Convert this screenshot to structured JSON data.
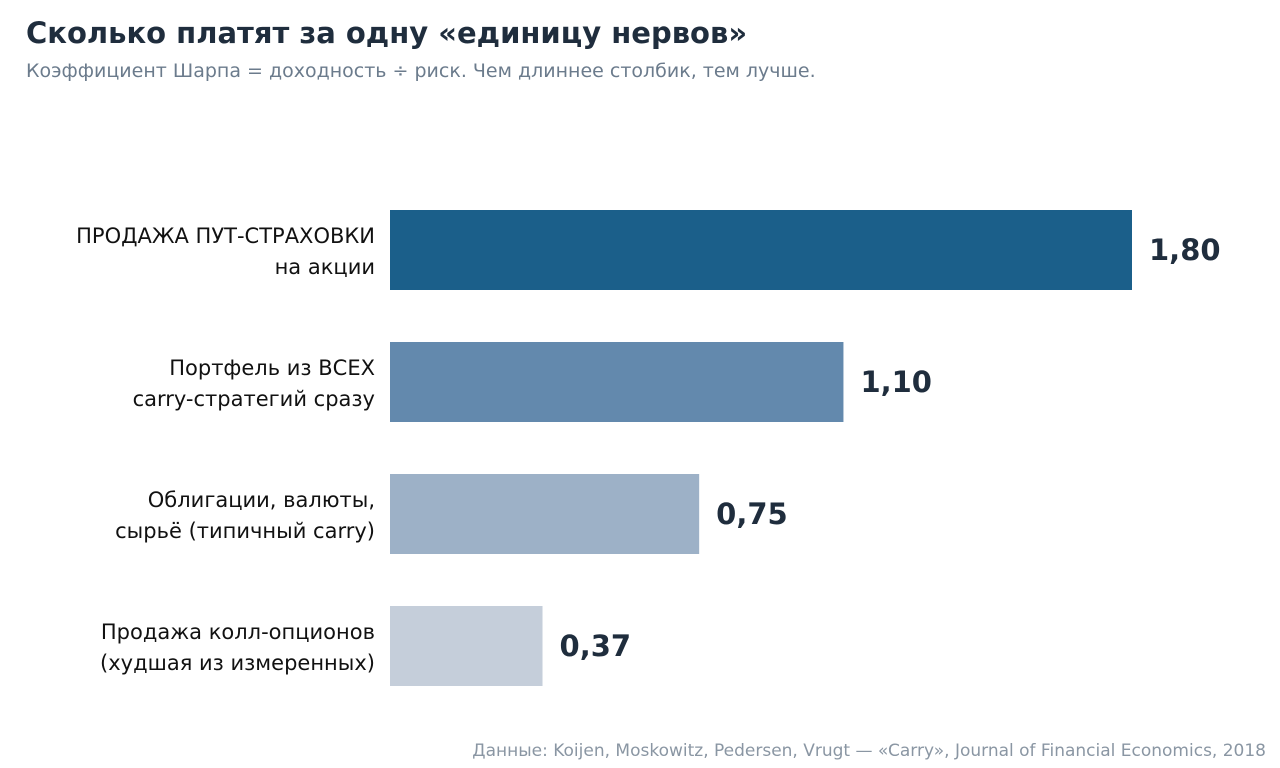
{
  "chart_data": {
    "type": "bar",
    "orientation": "horizontal",
    "title": "Сколько платят за одну «единицу нервов»",
    "subtitle": "Коэффициент Шарпа = доходность ÷ риск. Чем длиннее столбик, тем лучше.",
    "categories": [
      [
        "ПРОДАЖА ПУТ-СТРАХОВКИ",
        "на акции"
      ],
      [
        "Портфель из ВСЕХ",
        "carry-стратегий сразу"
      ],
      [
        "Облигации, валюты,",
        "сырьё (типичный carry)"
      ],
      [
        "Продажа колл-опционов",
        "(худшая из измеренных)"
      ]
    ],
    "values": [
      1.8,
      1.1,
      0.75,
      0.37
    ],
    "value_labels": [
      "1,80",
      "1,10",
      "0,75",
      "0,37"
    ],
    "colors": [
      "#1b5f8a",
      "#6389ad",
      "#9db1c7",
      "#c5ceda"
    ],
    "xlim": [
      0,
      1.8
    ],
    "grid": false,
    "legend": "none",
    "source": "Данные: Koijen, Moskowitz, Pedersen, Vrugt — «Carry», Journal of Financial Economics, 2018"
  }
}
